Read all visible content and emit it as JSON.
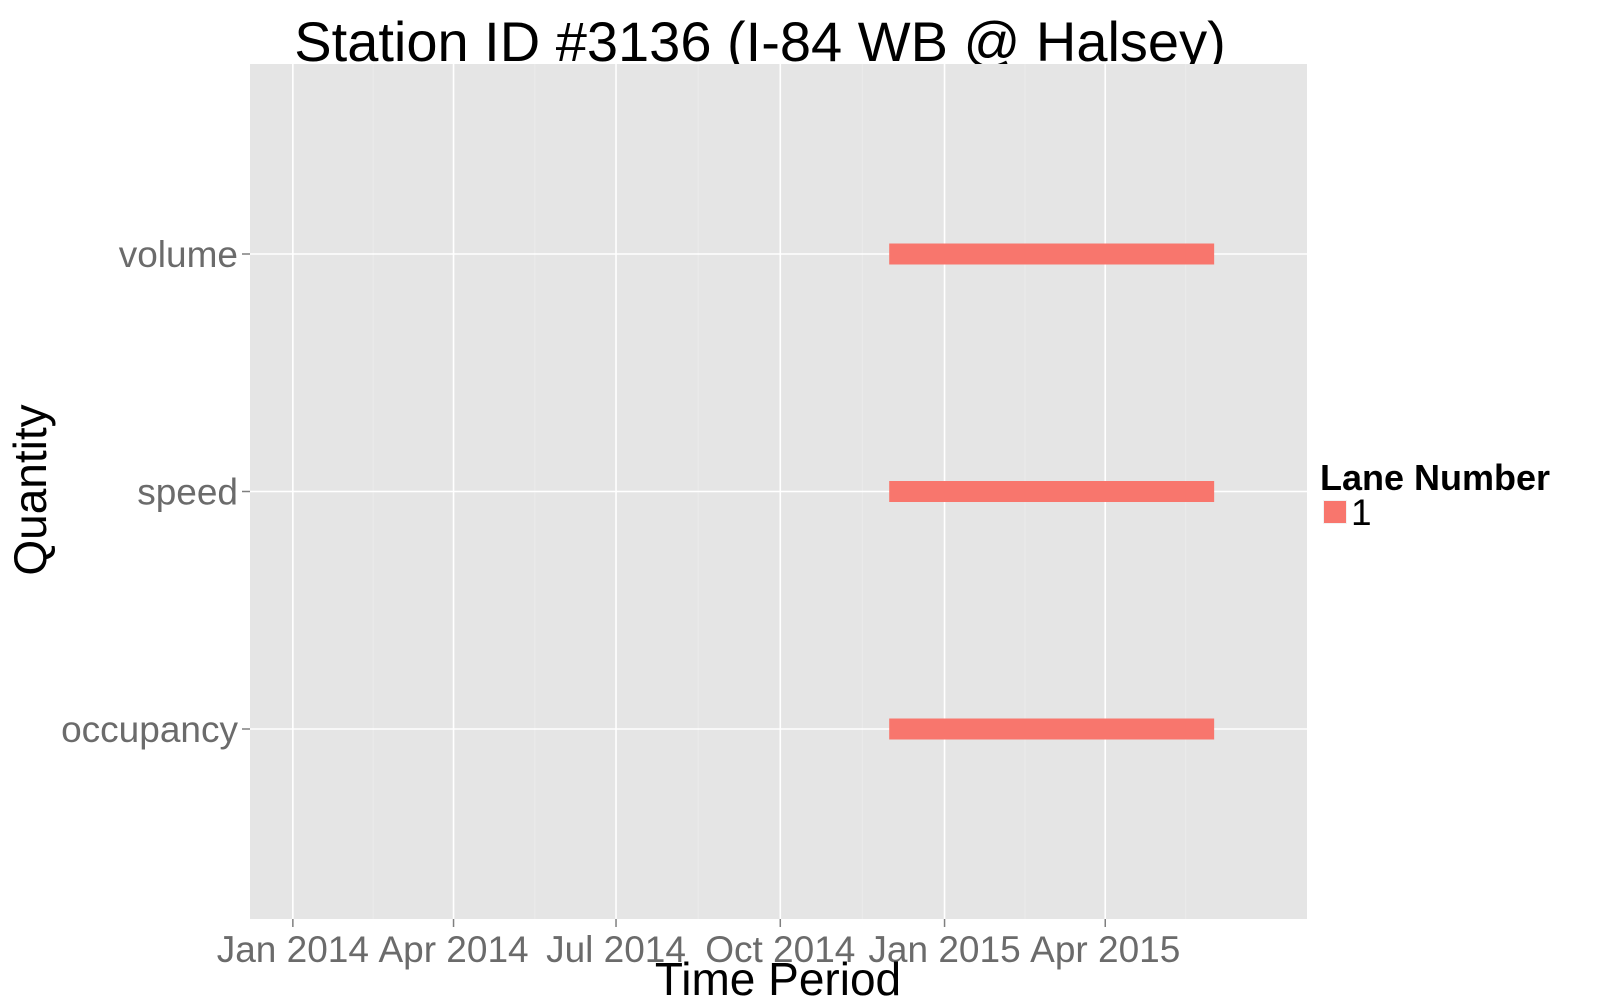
{
  "chart_data": {
    "type": "gantt",
    "title": "Station ID #3136 (I-84 WB @ Halsey)",
    "xlabel": "Time Period",
    "ylabel": "Quantity",
    "categories": [
      "volume",
      "speed",
      "occupancy"
    ],
    "x_ticks": [
      {
        "label": "Jan 2014",
        "date": "2014-01-01"
      },
      {
        "label": "Apr 2014",
        "date": "2014-04-01"
      },
      {
        "label": "Jul 2014",
        "date": "2014-07-01"
      },
      {
        "label": "Oct 2014",
        "date": "2014-10-01"
      },
      {
        "label": "Jan 2015",
        "date": "2015-01-01"
      },
      {
        "label": "Apr 2015",
        "date": "2015-04-01"
      }
    ],
    "xlim": [
      "2013-12-08",
      "2015-07-23"
    ],
    "series": [
      {
        "name": "1",
        "color": "#F8766D",
        "segments": [
          {
            "category": "volume",
            "start": "2014-12-01",
            "end": "2015-06-01"
          },
          {
            "category": "speed",
            "start": "2014-12-01",
            "end": "2015-06-01"
          },
          {
            "category": "occupancy",
            "start": "2014-12-01",
            "end": "2015-06-01"
          }
        ]
      }
    ],
    "legend": {
      "title": "Lane Number",
      "position": "right"
    },
    "grid": true,
    "panel_background": "#E5E5E5"
  }
}
